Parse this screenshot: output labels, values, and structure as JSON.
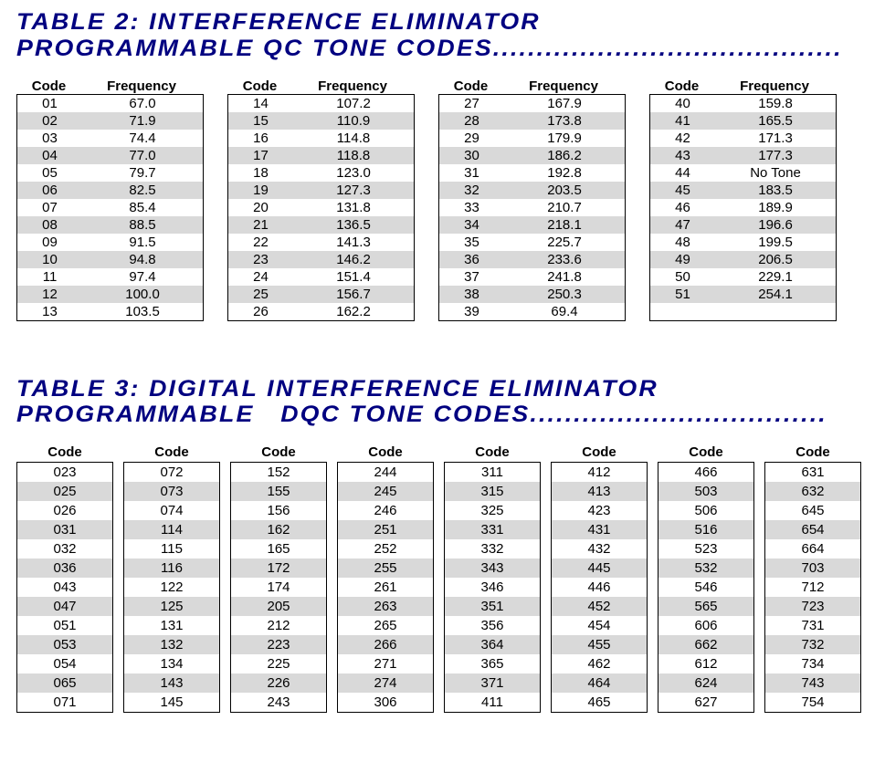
{
  "table2": {
    "title": "TABLE 2: INTERFERENCE ELIMINATOR\nPROGRAMMABLE QC TONE CODES........................................",
    "headers": {
      "code": "Code",
      "freq": "Frequency"
    },
    "shade_color": "#d9d9d9",
    "columns": [
      [
        {
          "code": "01",
          "freq": "67.0"
        },
        {
          "code": "02",
          "freq": "71.9"
        },
        {
          "code": "03",
          "freq": "74.4"
        },
        {
          "code": "04",
          "freq": "77.0"
        },
        {
          "code": "05",
          "freq": "79.7"
        },
        {
          "code": "06",
          "freq": "82.5"
        },
        {
          "code": "07",
          "freq": "85.4"
        },
        {
          "code": "08",
          "freq": "88.5"
        },
        {
          "code": "09",
          "freq": "91.5"
        },
        {
          "code": "10",
          "freq": "94.8"
        },
        {
          "code": "11",
          "freq": "97.4"
        },
        {
          "code": "12",
          "freq": "100.0"
        },
        {
          "code": "13",
          "freq": "103.5"
        }
      ],
      [
        {
          "code": "14",
          "freq": "107.2"
        },
        {
          "code": "15",
          "freq": "110.9"
        },
        {
          "code": "16",
          "freq": "114.8"
        },
        {
          "code": "17",
          "freq": "118.8"
        },
        {
          "code": "18",
          "freq": "123.0"
        },
        {
          "code": "19",
          "freq": "127.3"
        },
        {
          "code": "20",
          "freq": "131.8"
        },
        {
          "code": "21",
          "freq": "136.5"
        },
        {
          "code": "22",
          "freq": "141.3"
        },
        {
          "code": "23",
          "freq": "146.2"
        },
        {
          "code": "24",
          "freq": "151.4"
        },
        {
          "code": "25",
          "freq": "156.7"
        },
        {
          "code": "26",
          "freq": "162.2"
        }
      ],
      [
        {
          "code": "27",
          "freq": "167.9"
        },
        {
          "code": "28",
          "freq": "173.8"
        },
        {
          "code": "29",
          "freq": "179.9"
        },
        {
          "code": "30",
          "freq": "186.2"
        },
        {
          "code": "31",
          "freq": "192.8"
        },
        {
          "code": "32",
          "freq": "203.5"
        },
        {
          "code": "33",
          "freq": "210.7"
        },
        {
          "code": "34",
          "freq": "218.1"
        },
        {
          "code": "35",
          "freq": "225.7"
        },
        {
          "code": "36",
          "freq": "233.6"
        },
        {
          "code": "37",
          "freq": "241.8"
        },
        {
          "code": "38",
          "freq": "250.3"
        },
        {
          "code": "39",
          "freq": "69.4"
        }
      ],
      [
        {
          "code": "40",
          "freq": "159.8"
        },
        {
          "code": "41",
          "freq": "165.5"
        },
        {
          "code": "42",
          "freq": "171.3"
        },
        {
          "code": "43",
          "freq": "177.3"
        },
        {
          "code": "44",
          "freq": "No Tone"
        },
        {
          "code": "45",
          "freq": "183.5"
        },
        {
          "code": "46",
          "freq": "189.9"
        },
        {
          "code": "47",
          "freq": "196.6"
        },
        {
          "code": "48",
          "freq": "199.5"
        },
        {
          "code": "49",
          "freq": "206.5"
        },
        {
          "code": "50",
          "freq": "229.1"
        },
        {
          "code": "51",
          "freq": "254.1"
        }
      ]
    ]
  },
  "table3": {
    "title": "TABLE 3: DIGITAL INTERFERENCE ELIMINATOR\nPROGRAMMABLE   DQC TONE CODES..................................",
    "header": "Code",
    "shade_color": "#d9d9d9",
    "columns": [
      [
        "023",
        "025",
        "026",
        "031",
        "032",
        "036",
        "043",
        "047",
        "051",
        "053",
        "054",
        "065",
        "071"
      ],
      [
        "072",
        "073",
        "074",
        "114",
        "115",
        "116",
        "122",
        "125",
        "131",
        "132",
        "134",
        "143",
        "145"
      ],
      [
        "152",
        "155",
        "156",
        "162",
        "165",
        "172",
        "174",
        "205",
        "212",
        "223",
        "225",
        "226",
        "243"
      ],
      [
        "244",
        "245",
        "246",
        "251",
        "252",
        "255",
        "261",
        "263",
        "265",
        "266",
        "271",
        "274",
        "306"
      ],
      [
        "311",
        "315",
        "325",
        "331",
        "332",
        "343",
        "346",
        "351",
        "356",
        "364",
        "365",
        "371",
        "411"
      ],
      [
        "412",
        "413",
        "423",
        "431",
        "432",
        "445",
        "446",
        "452",
        "454",
        "455",
        "462",
        "464",
        "465"
      ],
      [
        "466",
        "503",
        "506",
        "516",
        "523",
        "532",
        "546",
        "565",
        "606",
        "662",
        "612",
        "624",
        "627"
      ],
      [
        "631",
        "632",
        "645",
        "654",
        "664",
        "703",
        "712",
        "723",
        "731",
        "732",
        "734",
        "743",
        "754"
      ]
    ]
  }
}
